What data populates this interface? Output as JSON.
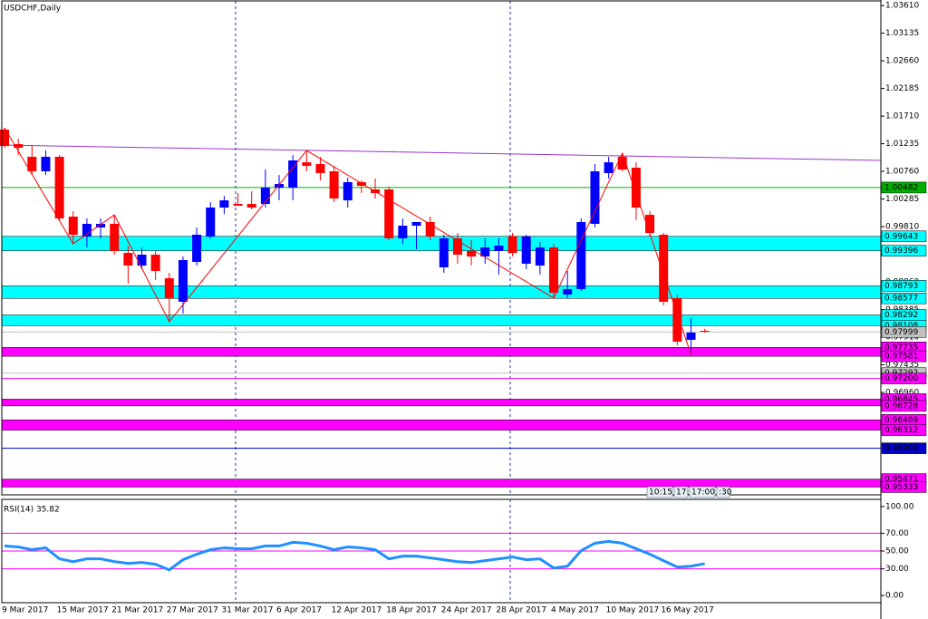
{
  "chart_data": [
    {
      "type": "candlestick",
      "title": "USDCHF,Daily",
      "categories": [
        "9 Mar 2017",
        null,
        null,
        null,
        "15 Mar 2017",
        null,
        null,
        null,
        "21 Mar 2017",
        null,
        null,
        null,
        "27 Mar 2017",
        null,
        null,
        null,
        "31 Mar 2017",
        null,
        null,
        null,
        "6 Apr 2017",
        null,
        null,
        null,
        "12 Apr 2017",
        null,
        null,
        null,
        "18 Apr 2017",
        null,
        null,
        null,
        "24 Apr 2017",
        null,
        null,
        null,
        "28 Apr 2017",
        null,
        null,
        null,
        "4 May 2017",
        null,
        null,
        null,
        "10 May 2017",
        null,
        null,
        null,
        "16 May 2017",
        null,
        null,
        null
      ],
      "open": [
        1.01477,
        1.01228,
        1.0101,
        1.00761,
        1.0101,
        0.99982,
        0.9964,
        0.99795,
        0.99858,
        0.99359,
        0.99141,
        0.99328,
        0.98923,
        0.98519,
        0.99204,
        0.9964,
        1.00138,
        1.002,
        1.002,
        1.002,
        1.0048,
        1.0048,
        1.00916,
        1.00885,
        1.00761,
        1.00262,
        1.00574,
        1.00449,
        1.00449,
        0.99609,
        0.99826,
        0.99889,
        0.9911,
        0.99609,
        0.99391,
        0.99297,
        0.99391,
        0.9964,
        0.99173,
        0.99141,
        0.99453,
        0.98643,
        0.98737,
        0.99858,
        1.0073,
        1.0101,
        1.00823,
        1.00013,
        0.99671,
        0.98581,
        0.97865,
        0.9802
      ],
      "high": [
        1.01508,
        1.01321,
        1.01197,
        1.01119,
        1.01041,
        1.00076,
        0.99951,
        0.99951,
        1.00013,
        0.99484,
        0.99453,
        0.99391,
        0.99017,
        0.99297,
        0.99795,
        1.00231,
        1.0034,
        1.00387,
        1.00418,
        1.00792,
        1.00698,
        1.01041,
        1.01119,
        1.0101,
        1.00854,
        1.00652,
        1.00605,
        1.00636,
        1.00496,
        0.99951,
        0.99889,
        0.99982,
        0.99671,
        0.99702,
        0.99577,
        0.99609,
        0.99609,
        0.99702,
        0.99671,
        0.99546,
        0.99515,
        0.99048,
        0.99951,
        1.00885,
        1.0101,
        1.01072,
        1.00916,
        1.00076,
        0.99702,
        0.98643,
        0.98238,
        0.98052
      ],
      "low": [
        1.01166,
        1.01041,
        1.00698,
        1.00698,
        0.9992,
        0.99515,
        0.99453,
        0.99609,
        0.99328,
        0.9883,
        0.99079,
        0.98892,
        0.98176,
        0.98316,
        0.99141,
        0.99609,
        1.00029,
        1.00169,
        1.00107,
        1.00138,
        1.00262,
        1.00262,
        1.00761,
        1.00605,
        1.00231,
        1.00138,
        1.00387,
        1.00294,
        0.99577,
        0.99515,
        0.99422,
        0.99577,
        0.99017,
        0.99173,
        0.99141,
        0.99173,
        0.98986,
        0.99297,
        0.99079,
        0.98986,
        0.98581,
        0.98581,
        0.98705,
        0.99795,
        1.00636,
        1.00761,
        0.9992,
        0.9964,
        0.98456,
        0.97771,
        0.97615,
        0.97989
      ],
      "close": [
        1.01197,
        1.01166,
        1.00761,
        1.0101,
        0.99951,
        0.99671,
        0.99858,
        0.99858,
        0.99391,
        0.99141,
        0.99328,
        0.99048,
        0.98581,
        0.99235,
        0.99671,
        1.00138,
        1.00262,
        1.00169,
        1.00138,
        1.0048,
        1.00543,
        1.00948,
        1.00854,
        1.0073,
        1.00294,
        1.00574,
        1.00512,
        1.00387,
        0.99609,
        0.99826,
        0.99889,
        0.9964,
        0.99609,
        0.99328,
        0.99297,
        0.99453,
        0.99484,
        0.99359,
        0.9964,
        0.99453,
        0.98674,
        0.98737,
        0.99889,
        1.00761,
        1.00916,
        1.00792,
        1.00138,
        0.99702,
        0.98519,
        0.97833,
        0.97989,
        0.98005
      ],
      "bull_color": "#0000ff",
      "bear_color": "#ff0000",
      "zigzag": {
        "color": "#ff0000",
        "values": [
          1.01508,
          null,
          null,
          null,
          null,
          0.99515,
          null,
          null,
          1.00013,
          null,
          null,
          null,
          0.98176,
          null,
          null,
          null,
          null,
          null,
          null,
          null,
          null,
          null,
          1.01119,
          null,
          null,
          null,
          null,
          null,
          null,
          null,
          null,
          null,
          null,
          null,
          null,
          null,
          null,
          null,
          null,
          null,
          0.98581,
          null,
          null,
          null,
          null,
          1.01072,
          null,
          null,
          null,
          null,
          0.97615,
          null
        ]
      },
      "ylim": [
        0.952,
        1.0369
      ],
      "yticks": [
        {
          "value": 1.0361,
          "label": "1.03610"
        },
        1.03135,
        {
          "value": 1.0266,
          "label": "1.02660"
        },
        1.02185,
        {
          "value": 1.0171,
          "label": "1.01710"
        },
        1.01235,
        {
          "value": 1.0076,
          "label": "1.00760"
        },
        1.00285,
        {
          "value": 0.9981,
          "label": "0.99810"
        },
        0.99335,
        {
          "value": 0.9886,
          "label": "0.98860"
        },
        0.98385,
        {
          "value": 0.9791,
          "label": "0.97910"
        },
        0.97435,
        {
          "value": 0.9696,
          "label": "0.96960"
        }
      ],
      "bands": [
        {
          "top": 0.99643,
          "bottom": 0.99396,
          "color": "#00ffff"
        },
        {
          "top": 0.98793,
          "bottom": 0.98577,
          "color": "#00ffff"
        },
        {
          "top": 0.98292,
          "bottom": 0.98108,
          "color": "#00ffff"
        },
        {
          "top": 0.97735,
          "bottom": 0.97581,
          "color": "#ff00ff"
        },
        {
          "top": 0.96845,
          "bottom": 0.96728,
          "color": "#ff00ff"
        },
        {
          "top": 0.96489,
          "bottom": 0.96312,
          "color": "#ff00ff"
        },
        {
          "top": 0.95471,
          "bottom": 0.95333,
          "color": "#ff00ff"
        }
      ],
      "levels": [
        {
          "price": 1.00482,
          "color": "#00b000"
        },
        {
          "price": 0.97999,
          "color": "#c0c0c0"
        },
        {
          "price": 0.97292,
          "color": "#c0c0c0"
        },
        {
          "price": {
            "value": 0.972,
            "label": "0.97200"
          },
          "color": "#ff00ff"
        },
        {
          "price": {
            "value": 0.96,
            "label": "0.96000"
          },
          "color": "#0000cc"
        }
      ],
      "time_labels": [
        "10:15",
        "17:",
        "17:00",
        ":30"
      ]
    },
    {
      "type": "line",
      "title": "RSI(14) 35.82",
      "series": [
        {
          "color": "#1e90ff",
          "values": [
            55.7,
            54.6,
            51.5,
            53.6,
            41.2,
            38.1,
            41.2,
            41.2,
            38.1,
            36.1,
            37.1,
            35.1,
            28.9,
            40.2,
            46.4,
            51.5,
            53.6,
            52.6,
            52.6,
            55.7,
            55.7,
            59.8,
            58.8,
            55.7,
            51.5,
            54.6,
            53.6,
            51.5,
            41.2,
            44.3,
            44.3,
            42.3,
            40.2,
            38.1,
            37.1,
            39.2,
            41.2,
            43.3,
            40.2,
            41.2,
            30.9,
            33.0,
            50.5,
            58.8,
            60.8,
            58.8,
            52.6,
            46.4,
            39.2,
            32.0,
            33.0,
            35.82
          ]
        }
      ],
      "ylim": [
        -8,
        108
      ],
      "yticks": [
        {
          "value": 100,
          "label": "100.00"
        },
        {
          "value": 70,
          "label": "70.00"
        },
        {
          "value": 50,
          "label": "50.00"
        },
        {
          "value": 30,
          "label": "30.00"
        },
        {
          "value": 0,
          "label": "0.00"
        }
      ],
      "levels": [
        70,
        50,
        30
      ],
      "level_color": "#ff00ff"
    }
  ]
}
